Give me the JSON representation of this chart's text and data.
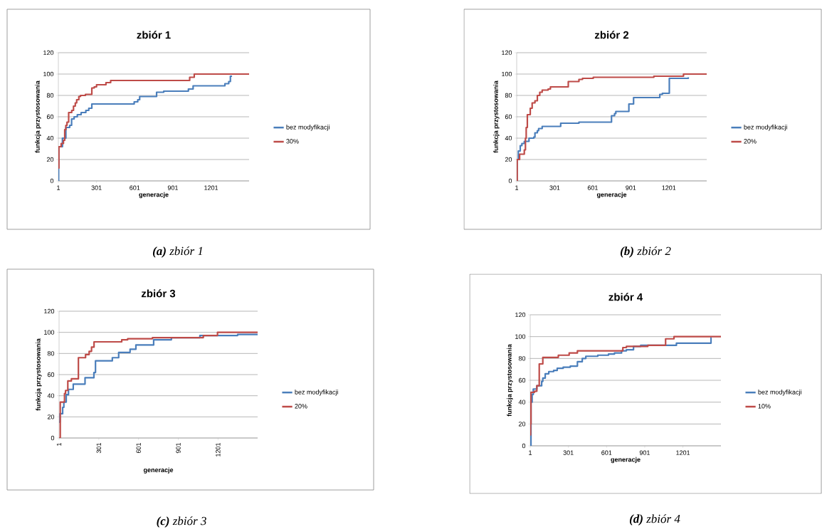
{
  "chart_data": [
    {
      "type": "step",
      "title": "zbiór 1",
      "xlabel": "generacje",
      "ylabel": "funkcja  przystosowania",
      "xlim": [
        1,
        1500
      ],
      "ylim": [
        0,
        120
      ],
      "xticks": [
        1,
        301,
        601,
        901,
        1201
      ],
      "yticks": [
        0,
        20,
        40,
        60,
        80,
        100,
        120
      ],
      "grid": "y",
      "legend": "right",
      "marker": "none",
      "line_style": "solid",
      "annotations": [
        "**(a)** zbiór 1"
      ],
      "series": [
        {
          "name": "bez modyfikacji",
          "color": "#4a7ebb",
          "x": [
            1,
            3,
            33,
            60,
            90,
            105,
            125,
            150,
            180,
            217,
            240,
            264,
            597,
            625,
            640,
            653,
            773,
            829,
            1023,
            1060,
            1310,
            1340,
            1353,
            1366
          ],
          "values": [
            0,
            32,
            40,
            50,
            52,
            58,
            60,
            62,
            64,
            66,
            68,
            72,
            74,
            76,
            79,
            79,
            83,
            84,
            86,
            89,
            91,
            93,
            98,
            98
          ]
        },
        {
          "name": "30%",
          "color": "#be4b48",
          "x": [
            1,
            5,
            23,
            41,
            51,
            60,
            69,
            82,
            106,
            120,
            134,
            145,
            162,
            175,
            214,
            264,
            283,
            301,
            375,
            412,
            1033,
            1069,
            1500
          ],
          "values": [
            12,
            32,
            35,
            38,
            48,
            52,
            55,
            64,
            66,
            70,
            73,
            76,
            79,
            80,
            81,
            87,
            88,
            90,
            92,
            94,
            97,
            100,
            100
          ]
        }
      ]
    },
    {
      "type": "step",
      "title": "zbiór 2",
      "xlabel": "generacje",
      "ylabel": "funkcja  przystosowania",
      "xlim": [
        1,
        1500
      ],
      "ylim": [
        0,
        120
      ],
      "xticks": [
        1,
        301,
        601,
        901,
        1201
      ],
      "yticks": [
        0,
        20,
        40,
        60,
        80,
        100,
        120
      ],
      "grid": "y",
      "legend": "right",
      "marker": "none",
      "line_style": "solid",
      "annotations": [
        "**(b)** zbiór 2"
      ],
      "series": [
        {
          "name": "bez modyfikacji",
          "color": "#4a7ebb",
          "x": [
            1,
            3,
            14,
            29,
            42,
            61,
            98,
            136,
            145,
            164,
            174,
            202,
            348,
            492,
            749,
            773,
            783,
            886,
            923,
            1130,
            1150,
            1205,
            1355
          ],
          "values": [
            0,
            20,
            28,
            33,
            35,
            37,
            40,
            41,
            45,
            47,
            49,
            51,
            54,
            55,
            61,
            63,
            65,
            72,
            78,
            81,
            82,
            96,
            97
          ]
        },
        {
          "name": "20%",
          "color": "#be4b48",
          "x": [
            1,
            5,
            24,
            61,
            70,
            76,
            85,
            108,
            123,
            145,
            164,
            183,
            202,
            249,
            267,
            408,
            492,
            520,
            605,
            1083,
            1317,
            1500
          ],
          "values": [
            0,
            20,
            25,
            29,
            40,
            50,
            62,
            68,
            73,
            75,
            80,
            83,
            85,
            86,
            88,
            93,
            95,
            96,
            97,
            98,
            100,
            100
          ]
        }
      ]
    },
    {
      "type": "step",
      "title": "zbiór 3",
      "xlabel": "generacje",
      "ylabel": "funkcja  przystosowania",
      "xlim": [
        1,
        1500
      ],
      "ylim": [
        0,
        120
      ],
      "xticks": [
        1,
        301,
        601,
        901,
        1201
      ],
      "yticks": [
        0,
        20,
        40,
        60,
        80,
        100,
        120
      ],
      "grid": "y",
      "legend": "right",
      "marker": "none",
      "line_style": "solid",
      "annotations": [
        "**(c)** zbiór 3"
      ],
      "series": [
        {
          "name": "bez modyfikacji",
          "color": "#4a7ebb",
          "x": [
            1,
            8,
            28,
            37,
            55,
            72,
            108,
            197,
            264,
            276,
            403,
            451,
            537,
            581,
            715,
            849,
            1064,
            1349,
            1500
          ],
          "values": [
            15,
            23,
            29,
            34,
            41,
            46,
            51,
            57,
            62,
            73,
            76,
            81,
            84,
            88,
            93,
            95,
            97,
            98,
            98
          ]
        },
        {
          "name": "20%",
          "color": "#be4b48",
          "x": [
            1,
            10,
            42,
            50,
            67,
            94,
            147,
            201,
            228,
            246,
            265,
            474,
            519,
            706,
            1090,
            1197,
            1500
          ],
          "values": [
            0,
            34,
            42,
            45,
            54,
            56,
            76,
            79,
            82,
            86,
            91,
            93,
            94,
            95,
            97,
            100,
            100
          ]
        }
      ]
    },
    {
      "type": "step",
      "title": "zbiór 4",
      "xlabel": "generacje",
      "ylabel": "funkcja  przystosowania",
      "xlim": [
        1,
        1500
      ],
      "ylim": [
        0,
        120
      ],
      "xticks": [
        1,
        301,
        601,
        901,
        1201
      ],
      "yticks": [
        0,
        20,
        40,
        60,
        80,
        100,
        120
      ],
      "grid": "y",
      "legend": "right",
      "marker": "none",
      "line_style": "solid",
      "annotations": [
        "**(d)** zbiór 4"
      ],
      "series": [
        {
          "name": "bez modyfikacji",
          "color": "#4a7ebb",
          "x": [
            1,
            7,
            16,
            25,
            53,
            91,
            100,
            119,
            147,
            185,
            213,
            260,
            316,
            372,
            410,
            438,
            532,
            616,
            663,
            719,
            757,
            813,
            869,
            1150,
            1422,
            1425
          ],
          "values": [
            0,
            40,
            47,
            52,
            55,
            59,
            62,
            66,
            68,
            69,
            71,
            72,
            73,
            77,
            80,
            82,
            83,
            84,
            85,
            87,
            88,
            91,
            92,
            94,
            99,
            99
          ]
        },
        {
          "name": "10%",
          "color": "#be4b48",
          "x": [
            1,
            4,
            7,
            35,
            53,
            72,
            100,
            222,
            307,
            372,
            729,
            757,
            925,
            1065,
            1131,
            1500
          ],
          "values": [
            10,
            20,
            49,
            50,
            55,
            75,
            81,
            83,
            85,
            87,
            90,
            91,
            92,
            98,
            100,
            100
          ]
        }
      ]
    }
  ]
}
